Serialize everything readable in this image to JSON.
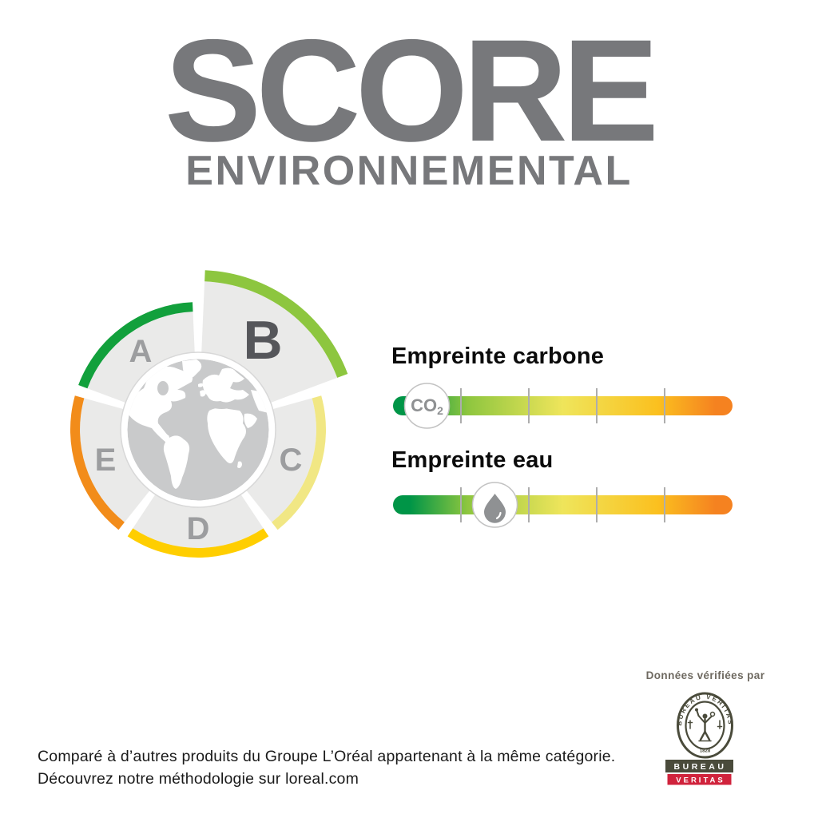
{
  "title": {
    "main": "SCORE",
    "subtitle": "ENVIRONNEMENTAL",
    "color": "#77787B"
  },
  "wheel": {
    "type": "grade-gauge",
    "selected_grade": "B",
    "center_icon": "globe",
    "grades": [
      {
        "label": "A",
        "arc_color": "#12A03C"
      },
      {
        "label": "B",
        "arc_color": "#8DC63F",
        "selected": true
      },
      {
        "label": "C",
        "arc_color": "#F1E784"
      },
      {
        "label": "D",
        "arc_color": "#FFCE00"
      },
      {
        "label": "E",
        "arc_color": "#F28C1A"
      }
    ]
  },
  "metrics": [
    {
      "label": "Empreinte carbone",
      "icon": "co2-icon",
      "marker_text": "CO",
      "marker_text_sub": "2",
      "marker_position_pct": 10
    },
    {
      "label": "Empreinte eau",
      "icon": "water-drop-icon",
      "marker_position_pct": 30
    }
  ],
  "scale": {
    "segments": 5,
    "gradient_colors": [
      "#009547",
      "#8EC63F",
      "#EFE55B",
      "#FBC01F",
      "#F58220"
    ]
  },
  "verification": {
    "heading": "Données vérifiées par",
    "logo": {
      "name": "Bureau Veritas",
      "seal_text": "BUREAU VERITAS",
      "seal_year": "1828",
      "bar_top": "BUREAU",
      "bar_bottom": "VERITAS",
      "bar_top_color": "#4A4B3B",
      "bar_bottom_color": "#D0233C"
    }
  },
  "footnote": {
    "line1": "Comparé à d’autres produits du Groupe L’Oréal appartenant à la même catégorie.",
    "line2": "Découvrez notre méthodologie sur loreal.com"
  },
  "chart_data": {
    "type": "gauge",
    "title": "Score environnemental",
    "grades": [
      "A",
      "B",
      "C",
      "D",
      "E"
    ],
    "selected_grade": "B",
    "indicators": [
      {
        "name": "Empreinte carbone",
        "scale_segments": 5,
        "marker_segment": 1,
        "marker_position_pct": 10
      },
      {
        "name": "Empreinte eau",
        "scale_segments": 5,
        "marker_segment": 2,
        "marker_position_pct": 30
      }
    ]
  }
}
